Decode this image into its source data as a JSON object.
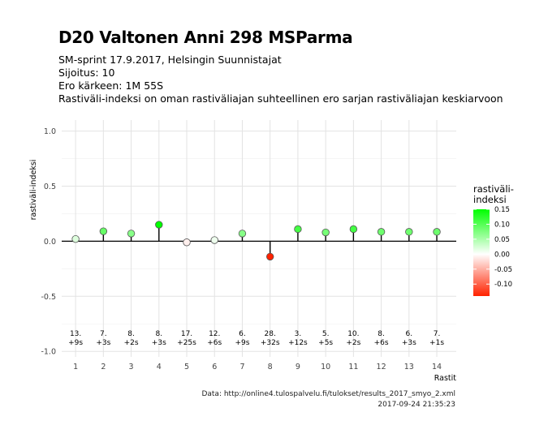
{
  "title": "D20 Valtonen Anni 298 MSParma",
  "subtitle_lines": [
    "SM-sprint 17.9.2017, Helsingin Suunnistajat",
    "Sijoitus: 10",
    "Ero kärkeen: 1M 55S",
    "Rastiväli-indeksi on oman rastiväliajan suhteellinen ero sarjan rastiväliajan keskiarvoon"
  ],
  "caption": {
    "source": "Data: http://online4.tulospalvelu.fi/tulokset/results_2017_smyo_2.xml",
    "timestamp": "2017-09-24 21:35:23"
  },
  "chart_data": {
    "type": "scatter",
    "style": "lollipop",
    "x": [
      1,
      2,
      3,
      4,
      5,
      6,
      7,
      8,
      9,
      10,
      11,
      12,
      13,
      14
    ],
    "y": [
      0.02,
      0.09,
      0.07,
      0.15,
      -0.01,
      0.01,
      0.07,
      -0.14,
      0.11,
      0.08,
      0.11,
      0.085,
      0.085,
      0.085
    ],
    "rank_labels": [
      "13.",
      "7.",
      "8.",
      "8.",
      "17.",
      "12.",
      "6.",
      "28.",
      "3.",
      "5.",
      "10.",
      "8.",
      "6.",
      "7."
    ],
    "diff_labels": [
      "+9s",
      "+3s",
      "+2s",
      "+3s",
      "+25s",
      "+6s",
      "+9s",
      "+32s",
      "+12s",
      "+5s",
      "+2s",
      "+6s",
      "+3s",
      "+1s"
    ],
    "xlabel": "Rastit",
    "ylabel": "rastiväli-indeksi",
    "xlim": [
      0.5,
      14.7
    ],
    "ylim": [
      -1.05,
      1.1
    ],
    "yticks": [
      "1.0",
      "0.5",
      "0.0",
      "-0.5",
      "-1.0"
    ],
    "ytick_values": [
      1.0,
      0.5,
      0.0,
      -0.5,
      -1.0
    ],
    "xticks": [
      "1",
      "2",
      "3",
      "4",
      "5",
      "6",
      "7",
      "8",
      "9",
      "10",
      "11",
      "12",
      "13",
      "14"
    ],
    "grid": true,
    "legend": {
      "title_lines": [
        "rastiväli-",
        "indeksi"
      ],
      "placement": "right",
      "labels": [
        "0.15",
        "0.10",
        "0.05",
        "0.00",
        "-0.05",
        "-0.10"
      ],
      "values": [
        0.15,
        0.1,
        0.05,
        0.0,
        -0.05,
        -0.1
      ],
      "range": [
        -0.14,
        0.15
      ]
    },
    "colors": {
      "high": "#00ff00",
      "mid": "#ffffff",
      "low": "#ff2200",
      "grid": "#e3e3e3",
      "zero_line": "#000000"
    }
  }
}
